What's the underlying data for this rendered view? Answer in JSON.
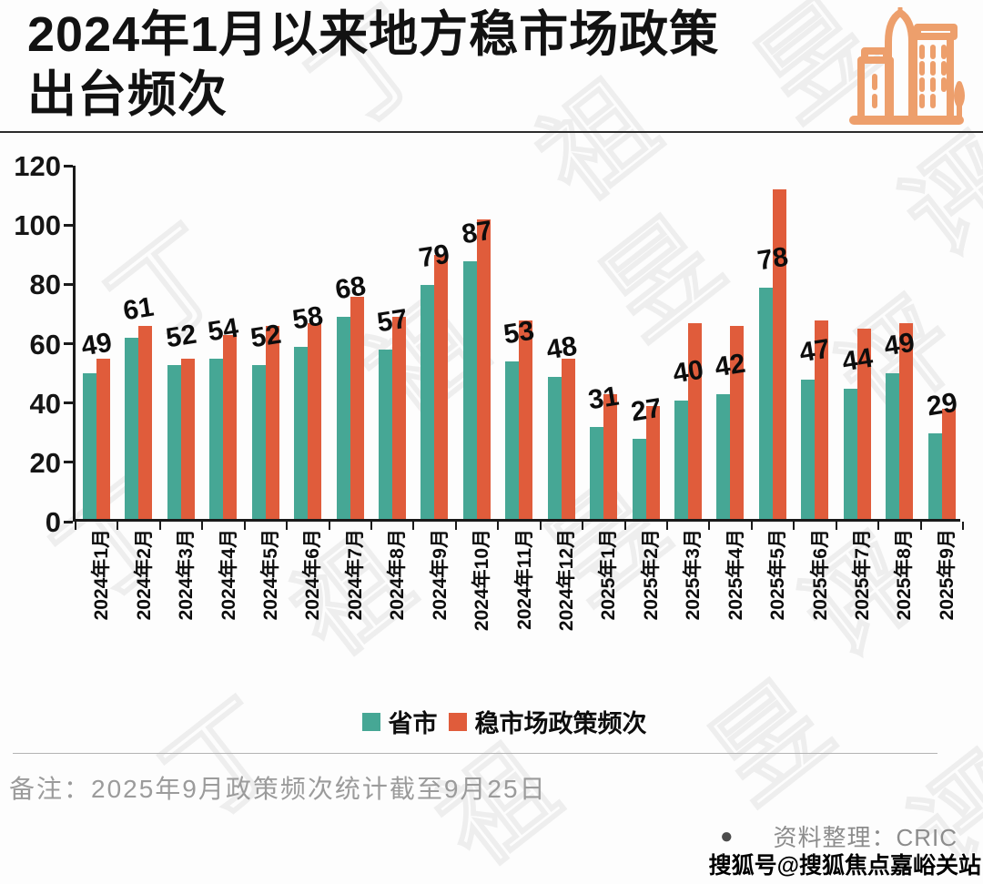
{
  "title": {
    "line1": "2024年1月以来地方稳市场政策",
    "line2": "出台频次"
  },
  "header_icon": {
    "name": "city-buildings-icon",
    "color": "#ED9F6C"
  },
  "chart_data": {
    "type": "bar",
    "categories": [
      "2024年1月",
      "2024年2月",
      "2024年3月",
      "2024年4月",
      "2024年5月",
      "2024年6月",
      "2024年7月",
      "2024年8月",
      "2024年9月",
      "2024年10月",
      "2024年11月",
      "2024年12月",
      "2025年1月",
      "2025年2月",
      "2025年3月",
      "2025年4月",
      "2025年5月",
      "2025年6月",
      "2025年7月",
      "2025年8月",
      "2025年9月"
    ],
    "series": [
      {
        "name": "省市",
        "color": "#46A795",
        "values": [
          49,
          61,
          52,
          54,
          52,
          58,
          68,
          57,
          79,
          87,
          53,
          48,
          31,
          27,
          40,
          42,
          78,
          47,
          44,
          49,
          29
        ]
      },
      {
        "name": "稳市场政策频次",
        "color": "#E05C3B",
        "values": [
          54,
          65,
          54,
          62,
          65,
          66,
          75,
          68,
          89,
          101,
          67,
          54,
          42,
          38,
          66,
          65,
          111,
          67,
          64,
          66,
          37
        ]
      }
    ],
    "bar_value_labels_series": "省市",
    "bar_value_labels": [
      49,
      61,
      52,
      54,
      52,
      58,
      68,
      57,
      79,
      87,
      53,
      48,
      31,
      27,
      40,
      42,
      78,
      47,
      44,
      49,
      29
    ],
    "title": "2024年1月以来地方稳市场政策出台频次",
    "xlabel": "",
    "ylabel": "",
    "ylim": [
      0,
      120
    ],
    "yticks": [
      0,
      20,
      40,
      60,
      80,
      100,
      120
    ],
    "grid": false,
    "legend_position": "bottom"
  },
  "legend": {
    "items": [
      {
        "label": "省市",
        "color": "#46A795"
      },
      {
        "label": "稳市场政策频次",
        "color": "#E05C3B"
      }
    ]
  },
  "footer": {
    "note": "备注：2025年9月政策频次统计截至9月25日",
    "source_bullet": "●",
    "source": "资料整理：CRIC",
    "sohu_watermark": "搜狐号@搜狐焦点嘉峪关站"
  },
  "background_watermark_chars": [
    "丁",
    "祖",
    "昱",
    "评"
  ]
}
